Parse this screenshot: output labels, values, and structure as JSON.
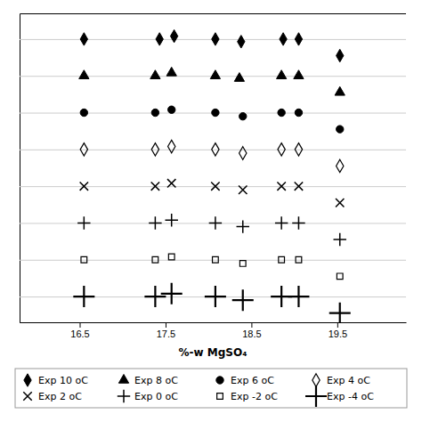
{
  "chart_data": {
    "type": "scatter",
    "xlabel": "%-w MgSO₄",
    "xlim": [
      15.8,
      20.3
    ],
    "xticks": [
      16.5,
      17.5,
      18.5,
      19.5
    ],
    "ylim": [
      0.3,
      8.7
    ],
    "yticks": [
      1,
      2,
      3,
      4,
      5,
      6,
      7,
      8
    ],
    "grid": true,
    "tick_labels": "x",
    "legend": "bottom",
    "series": [
      {
        "name": "Exp 10 oC",
        "color": "black",
        "marker": "diamond",
        "x": [
          16.55,
          17.43,
          17.6,
          18.08,
          18.38,
          18.87,
          19.05,
          19.53
        ],
        "values": [
          8.0,
          8.0,
          8.08,
          8.0,
          7.93,
          8.0,
          8.0,
          7.55
        ]
      },
      {
        "name": "Exp 8 oC",
        "color": "black",
        "marker": "triangle",
        "x": [
          16.55,
          17.38,
          17.57,
          18.08,
          18.36,
          18.85,
          19.05,
          19.53
        ],
        "values": [
          7.0,
          7.0,
          7.08,
          7.0,
          6.93,
          7.0,
          7.0,
          6.55
        ]
      },
      {
        "name": "Exp 6 oC",
        "color": "black",
        "marker": "circle",
        "x": [
          16.55,
          17.38,
          17.57,
          18.08,
          18.4,
          18.85,
          19.05,
          19.53
        ],
        "values": [
          6.0,
          6.0,
          6.08,
          6.0,
          5.9,
          6.0,
          6.0,
          5.55
        ]
      },
      {
        "name": "Exp 4 oC",
        "color": "black",
        "marker": "diamond-open",
        "x": [
          16.55,
          17.38,
          17.57,
          18.08,
          18.4,
          18.85,
          19.05,
          19.53
        ],
        "values": [
          5.0,
          5.0,
          5.08,
          5.0,
          4.9,
          5.0,
          5.0,
          4.55
        ]
      },
      {
        "name": "Exp 2 oC",
        "color": "black",
        "marker": "x",
        "x": [
          16.55,
          17.38,
          17.57,
          18.08,
          18.4,
          18.85,
          19.05,
          19.53
        ],
        "values": [
          4.0,
          4.0,
          4.08,
          4.0,
          3.9,
          4.0,
          4.0,
          3.55
        ]
      },
      {
        "name": "Exp 0 oC",
        "color": "black",
        "marker": "plus",
        "x": [
          16.55,
          17.38,
          17.57,
          18.08,
          18.4,
          18.85,
          19.05,
          19.53
        ],
        "values": [
          3.0,
          3.0,
          3.08,
          3.0,
          2.9,
          3.0,
          3.0,
          2.55
        ]
      },
      {
        "name": "Exp -2 oC",
        "color": "black",
        "marker": "square-open",
        "x": [
          16.55,
          17.38,
          17.57,
          18.08,
          18.4,
          18.85,
          19.05,
          19.53
        ],
        "values": [
          2.0,
          2.0,
          2.08,
          2.0,
          1.9,
          2.0,
          2.0,
          1.55
        ]
      },
      {
        "name": "Exp -4 oC",
        "color": "black",
        "marker": "plus-large",
        "x": [
          16.55,
          17.38,
          17.57,
          18.08,
          18.4,
          18.85,
          19.05,
          19.53
        ],
        "values": [
          1.0,
          1.0,
          1.08,
          1.0,
          0.9,
          1.0,
          1.0,
          0.55
        ]
      }
    ]
  }
}
